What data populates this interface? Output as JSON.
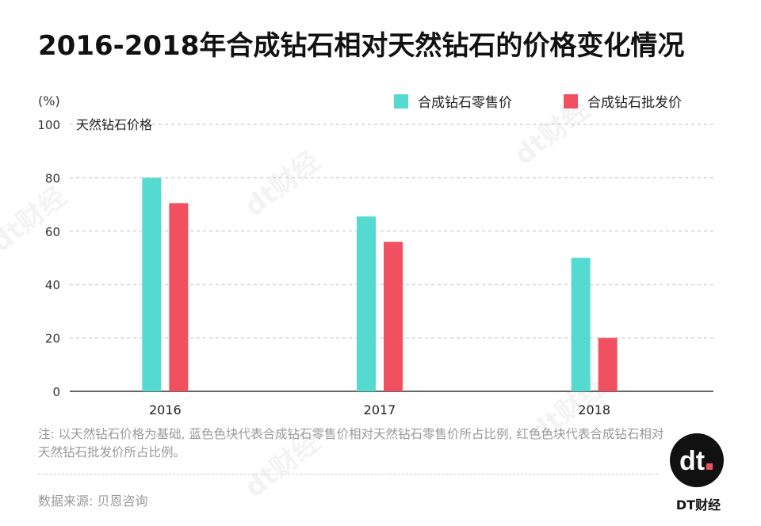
{
  "header": {
    "title": "2016-2018年合成钻石相对天然钻石的价格变化情况"
  },
  "colors": {
    "retail": "#55dad0",
    "wholesale": "#f0505f",
    "grid": "#bdbdbd",
    "axis": "#333333"
  },
  "chart_data": {
    "type": "bar",
    "categories": [
      "2016",
      "2017",
      "2018"
    ],
    "series": [
      {
        "name": "合成钻石零售价",
        "values": [
          80,
          65.5,
          50
        ]
      },
      {
        "name": "合成钻石批发价",
        "values": [
          70.5,
          56,
          20
        ]
      }
    ],
    "ylim": [
      0,
      100
    ],
    "yticks": [
      "0",
      "20",
      "40",
      "60",
      "80",
      "100"
    ],
    "yunit": "(%)",
    "annotation": "天然钻石价格",
    "grid": true,
    "legend_position": "top-right"
  },
  "footer": {
    "note": "注: 以天然钻石价格为基础, 蓝色色块代表合成钻石零售价相对天然钻石零售价所占比例, 红色色块代表合成钻石相对天然钻石批发价所占比例。",
    "source": "数据来源: 贝恩咨询",
    "brand": "DT财经",
    "logo_text": "dt",
    "watermark": "dt财经"
  }
}
